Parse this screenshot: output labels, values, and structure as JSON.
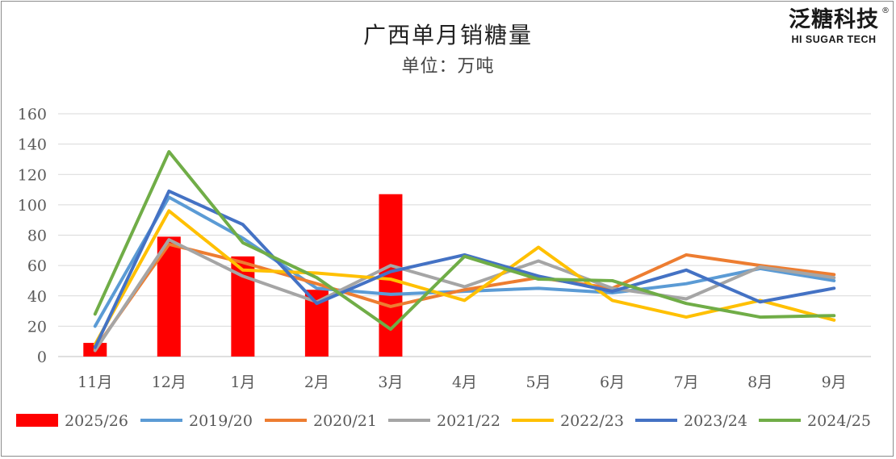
{
  "logo": {
    "cn": "泛糖科技",
    "en": "HI SUGAR TECH",
    "reg": "®"
  },
  "chart_data": {
    "type": "bar+line",
    "title": "广西单月销糖量",
    "subtitle": "单位：万吨",
    "categories": [
      "11月",
      "12月",
      "1月",
      "2月",
      "3月",
      "4月",
      "5月",
      "6月",
      "7月",
      "8月",
      "9月"
    ],
    "ylim": [
      0,
      160
    ],
    "yticks": [
      0,
      20,
      40,
      60,
      80,
      100,
      120,
      140,
      160
    ],
    "grid": true,
    "legend_position": "bottom",
    "bar_series": {
      "name": "2025/26",
      "color": "#ff0000",
      "values": [
        9,
        79,
        66,
        44,
        107,
        null,
        null,
        null,
        null,
        null,
        null
      ]
    },
    "line_series": [
      {
        "name": "2019/20",
        "color": "#5b9bd5",
        "values": [
          20,
          105,
          78,
          45,
          41,
          43,
          45,
          42,
          48,
          58,
          50
        ]
      },
      {
        "name": "2020/21",
        "color": "#ed7d31",
        "values": [
          5,
          74,
          62,
          48,
          33,
          44,
          52,
          45,
          67,
          60,
          54
        ]
      },
      {
        "name": "2021/22",
        "color": "#a5a5a5",
        "values": [
          4,
          77,
          53,
          36,
          60,
          46,
          63,
          45,
          38,
          59,
          52
        ]
      },
      {
        "name": "2022/23",
        "color": "#ffc000",
        "values": [
          8,
          96,
          57,
          55,
          51,
          37,
          72,
          37,
          26,
          37,
          24
        ]
      },
      {
        "name": "2023/24",
        "color": "#4472c4",
        "values": [
          6,
          109,
          87,
          35,
          56,
          67,
          53,
          43,
          57,
          36,
          45
        ]
      },
      {
        "name": "2024/25",
        "color": "#70ad47",
        "values": [
          28,
          135,
          75,
          52,
          18,
          66,
          51,
          50,
          35,
          26,
          27
        ]
      }
    ]
  }
}
